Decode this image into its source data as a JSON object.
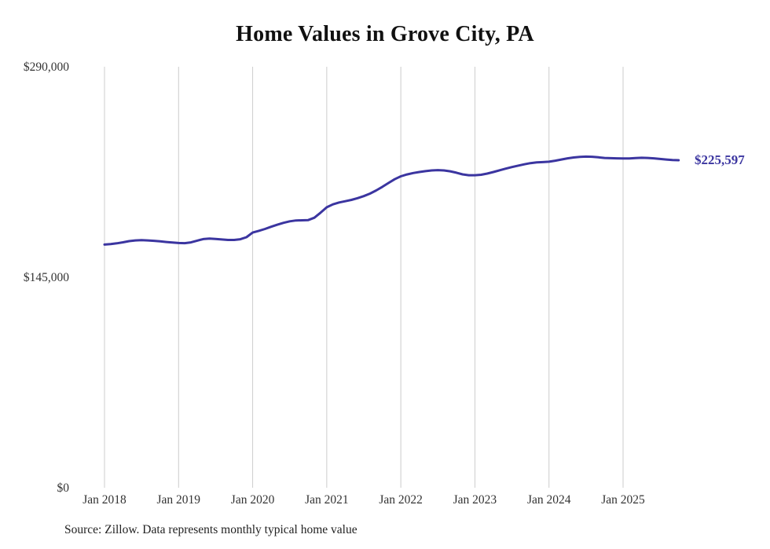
{
  "chart_data": {
    "type": "line",
    "title": "Home Values in Grove City, PA",
    "source": "Source: Zillow. Data represents monthly typical home value",
    "latest_value_label": "$225,597",
    "latest_value": 225597,
    "line_color": "#3b35a0",
    "gridline_color": "#cccccc",
    "tick_text_color": "#333333",
    "ylim": [
      0,
      290000
    ],
    "y_ticks": [
      290000,
      145000,
      0
    ],
    "y_tick_labels": [
      "$290,000",
      "$145,000",
      "$0"
    ],
    "x_tick_labels": [
      "Jan 2018",
      "Jan 2019",
      "Jan 2020",
      "Jan 2021",
      "Jan 2022",
      "Jan 2023",
      "Jan 2024",
      "Jan 2025"
    ],
    "x_tick_month_index": [
      0,
      12,
      24,
      36,
      48,
      60,
      72,
      84
    ],
    "legend_position": "none",
    "grid": "vertical-only",
    "x": [
      "2018-01",
      "2018-02",
      "2018-03",
      "2018-04",
      "2018-05",
      "2018-06",
      "2018-07",
      "2018-08",
      "2018-09",
      "2018-10",
      "2018-11",
      "2018-12",
      "2019-01",
      "2019-02",
      "2019-03",
      "2019-04",
      "2019-05",
      "2019-06",
      "2019-07",
      "2019-08",
      "2019-09",
      "2019-10",
      "2019-11",
      "2019-12",
      "2020-01",
      "2020-02",
      "2020-03",
      "2020-04",
      "2020-05",
      "2020-06",
      "2020-07",
      "2020-08",
      "2020-09",
      "2020-10",
      "2020-11",
      "2020-12",
      "2021-01",
      "2021-02",
      "2021-03",
      "2021-04",
      "2021-05",
      "2021-06",
      "2021-07",
      "2021-08",
      "2021-09",
      "2021-10",
      "2021-11",
      "2021-12",
      "2022-01",
      "2022-02",
      "2022-03",
      "2022-04",
      "2022-05",
      "2022-06",
      "2022-07",
      "2022-08",
      "2022-09",
      "2022-10",
      "2022-11",
      "2022-12",
      "2023-01",
      "2023-02",
      "2023-03",
      "2023-04",
      "2023-05",
      "2023-06",
      "2023-07",
      "2023-08",
      "2023-09",
      "2023-10",
      "2023-11",
      "2023-12",
      "2024-01",
      "2024-02",
      "2024-03",
      "2024-04",
      "2024-05",
      "2024-06",
      "2024-07",
      "2024-08",
      "2024-09",
      "2024-10",
      "2024-11",
      "2024-12",
      "2025-01",
      "2025-02",
      "2025-03",
      "2025-04",
      "2025-05",
      "2025-06",
      "2025-07",
      "2025-08",
      "2025-09",
      "2025-10"
    ],
    "values": [
      167500,
      167900,
      168400,
      169100,
      169900,
      170400,
      170600,
      170400,
      170100,
      169700,
      169300,
      168900,
      168600,
      168500,
      169000,
      170200,
      171300,
      171600,
      171400,
      171000,
      170700,
      170700,
      171200,
      172600,
      175800,
      177000,
      178300,
      179800,
      181200,
      182500,
      183500,
      184100,
      184200,
      184400,
      186000,
      189500,
      193200,
      195200,
      196500,
      197400,
      198300,
      199500,
      200900,
      202600,
      204800,
      207300,
      209900,
      212500,
      214500,
      215800,
      216800,
      217500,
      218100,
      218600,
      218800,
      218600,
      218000,
      217000,
      215900,
      215300,
      215300,
      215600,
      216400,
      217500,
      218700,
      219800,
      220900,
      221900,
      222800,
      223600,
      224100,
      224300,
      224600,
      225300,
      226100,
      226900,
      227500,
      227900,
      228100,
      228000,
      227600,
      227200,
      227000,
      226900,
      226800,
      226800,
      227100,
      227300,
      227200,
      226900,
      226500,
      226100,
      225800,
      225597
    ]
  }
}
